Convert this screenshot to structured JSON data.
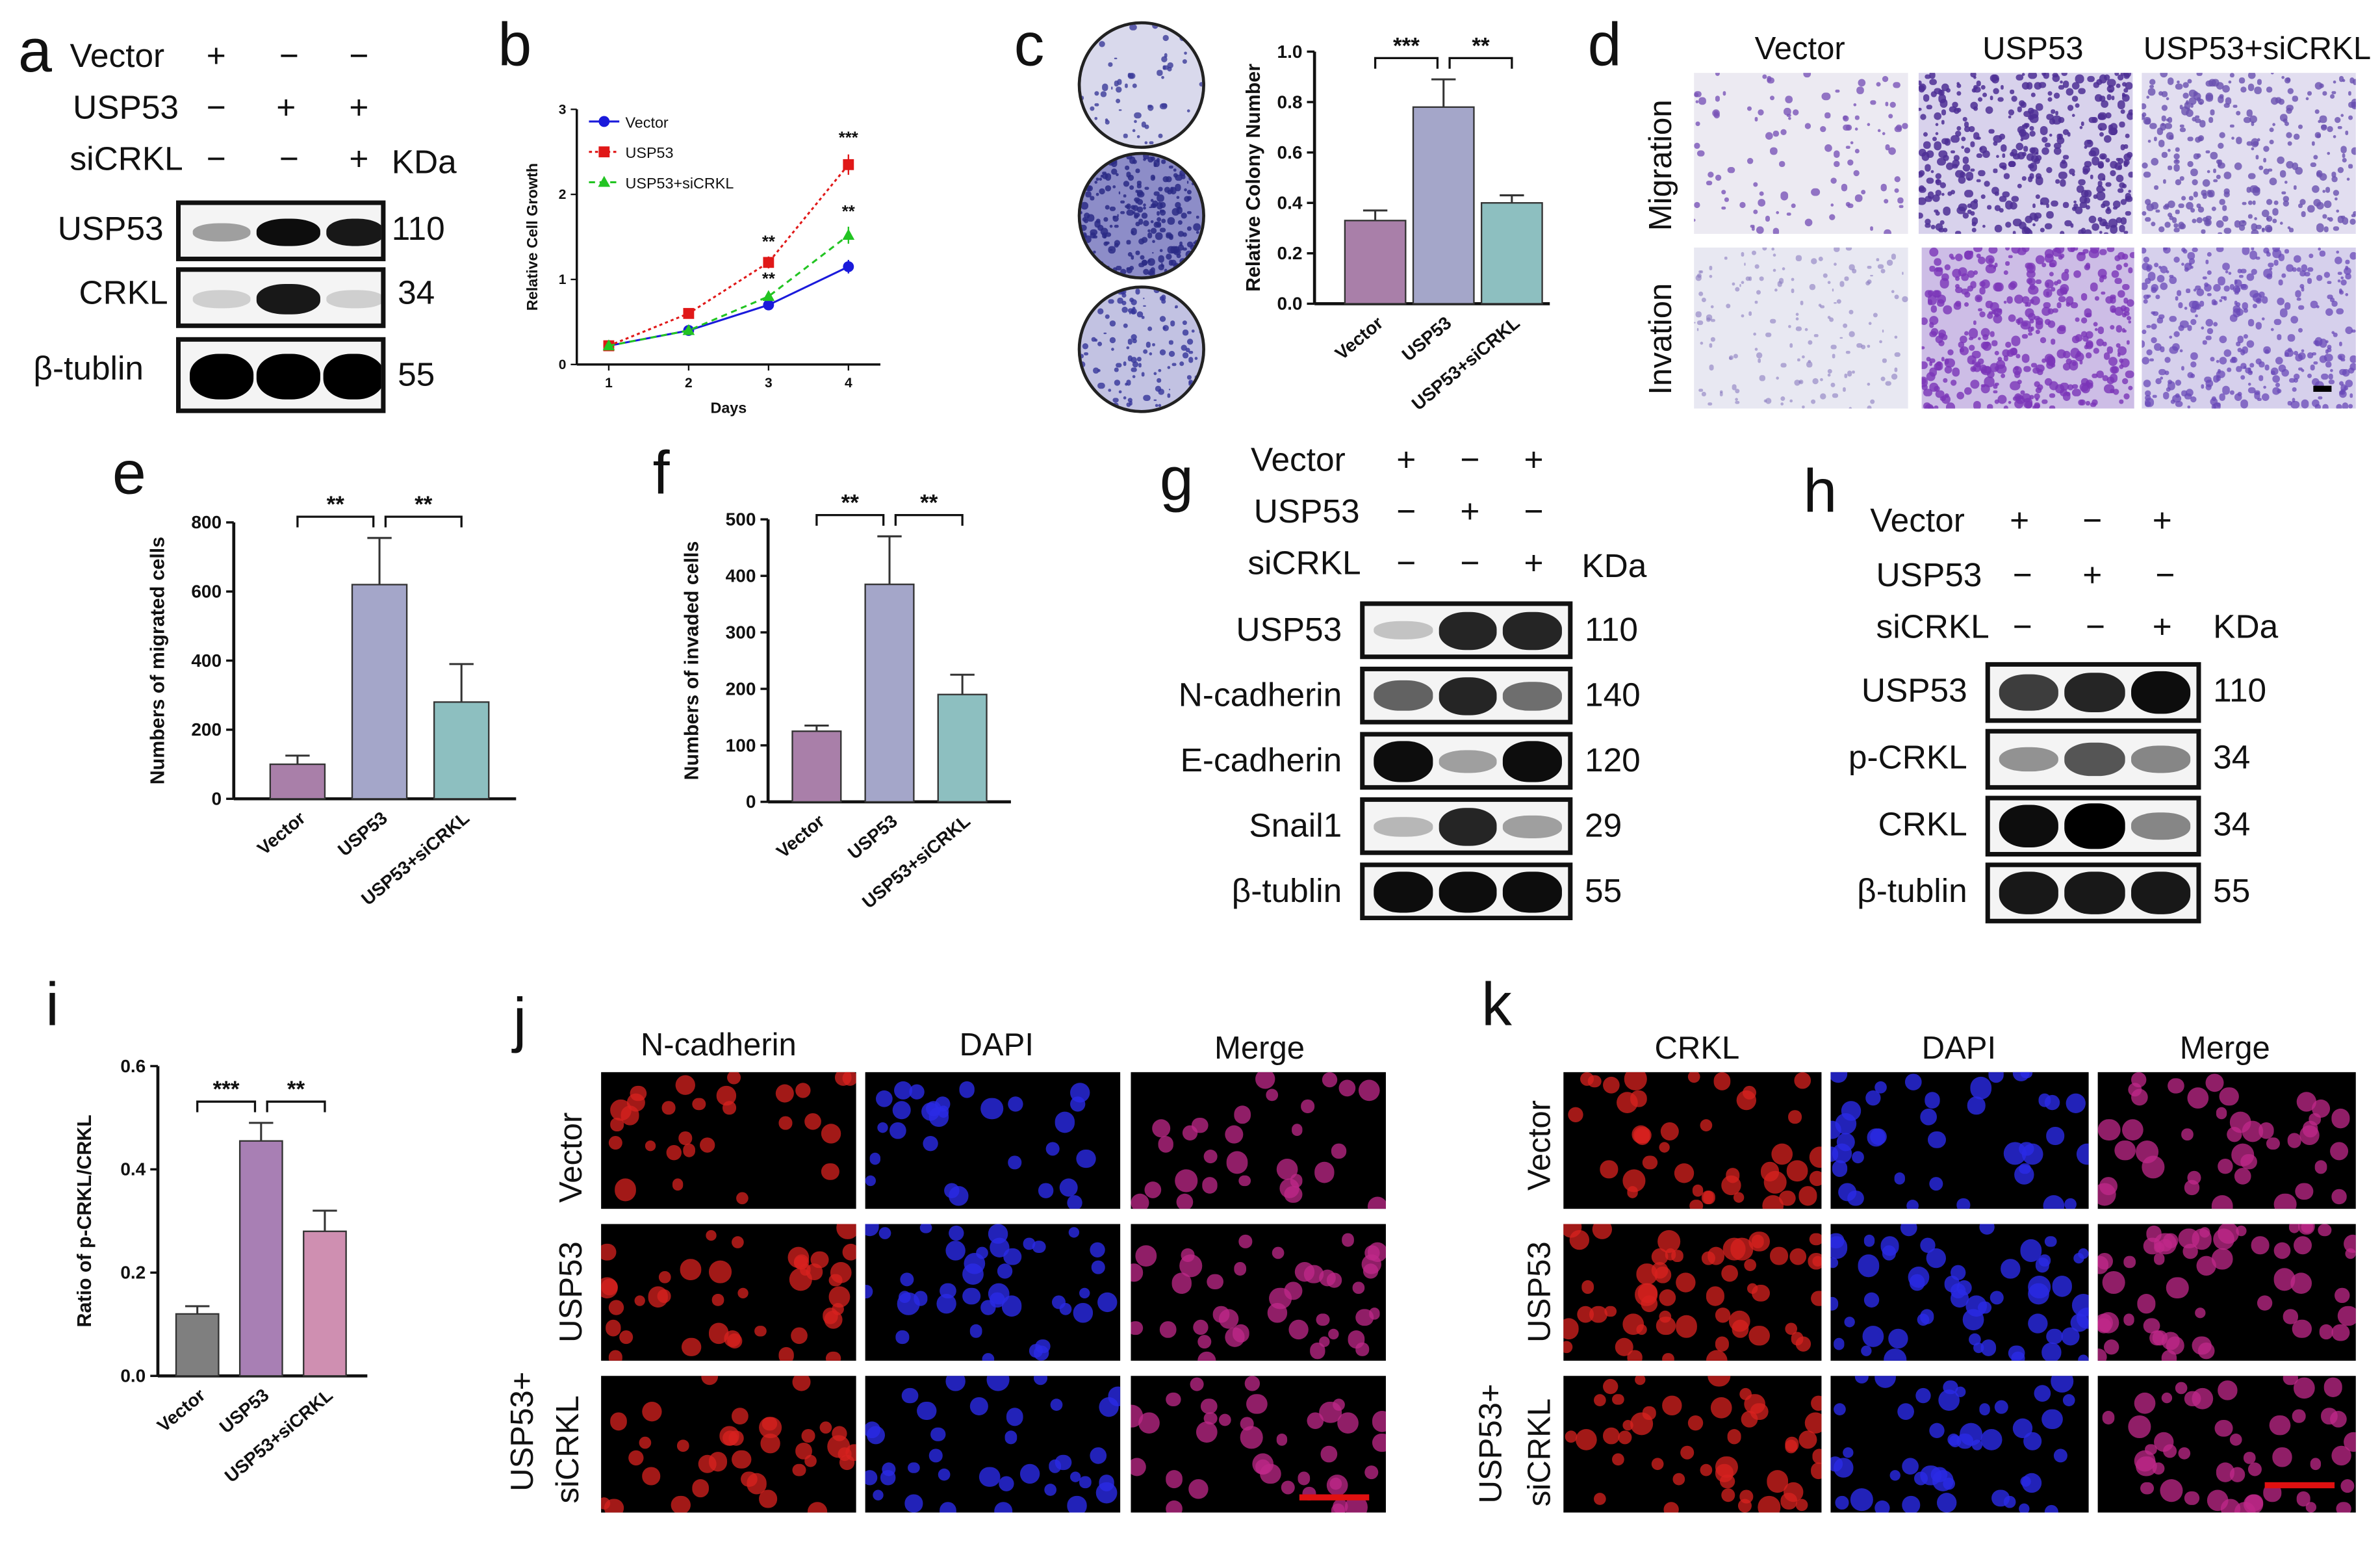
{
  "panel_letters": {
    "a": "a",
    "b": "b",
    "c": "c",
    "d": "d",
    "e": "e",
    "f": "f",
    "g": "g",
    "h": "h",
    "i": "i",
    "j": "j",
    "k": "k"
  },
  "sign": {
    "plus": "+",
    "minus": "−"
  },
  "kda": "KDa",
  "colors": {
    "vector_bar": "#a97fa9",
    "usp53_bar": "#a4a6c9",
    "si_bar": "#8dbfc0",
    "i_vector": "#7f7f7f",
    "i_usp53": "#a87fb4",
    "i_si": "#cf8fb1",
    "line_vector": "#1a1adb",
    "line_usp53": "#e01818",
    "line_si": "#22c422"
  },
  "blot_a": {
    "conditions": [
      {
        "label": "Vector",
        "signs": [
          "+",
          "−",
          "−"
        ]
      },
      {
        "label": "USP53",
        "signs": [
          "−",
          "+",
          "+"
        ]
      },
      {
        "label": "siCRKL",
        "signs": [
          "−",
          "−",
          "+"
        ]
      }
    ],
    "rows": [
      {
        "name": "USP53",
        "kda": "110",
        "intensity": [
          0.35,
          0.95,
          0.9
        ]
      },
      {
        "name": "CRKL",
        "kda": "34",
        "intensity": [
          0.15,
          0.9,
          0.15
        ]
      },
      {
        "name": "β-tublin",
        "kda": "55",
        "intensity": [
          1,
          1,
          1
        ]
      }
    ]
  },
  "blot_g": {
    "conditions": [
      {
        "label": "Vector",
        "signs": [
          "+",
          "−",
          "+"
        ]
      },
      {
        "label": "USP53",
        "signs": [
          "−",
          "+",
          "−"
        ]
      },
      {
        "label": "siCRKL",
        "signs": [
          "−",
          "−",
          "+"
        ]
      }
    ],
    "rows": [
      {
        "name": "USP53",
        "kda": "110",
        "intensity": [
          0.2,
          0.85,
          0.85
        ]
      },
      {
        "name": "N-cadherin",
        "kda": "140",
        "intensity": [
          0.6,
          0.85,
          0.55
        ]
      },
      {
        "name": "E-cadherin",
        "kda": "120",
        "intensity": [
          0.95,
          0.35,
          0.95
        ]
      },
      {
        "name": "Snail1",
        "kda": "29",
        "intensity": [
          0.25,
          0.85,
          0.35
        ]
      },
      {
        "name": "β-tublin",
        "kda": "55",
        "intensity": [
          0.95,
          0.95,
          0.95
        ]
      }
    ]
  },
  "blot_h": {
    "conditions": [
      {
        "label": "Vector",
        "signs": [
          "+",
          "−",
          "+"
        ]
      },
      {
        "label": "USP53",
        "signs": [
          "−",
          "+",
          "−"
        ]
      },
      {
        "label": "siCRKL",
        "signs": [
          "−",
          "−",
          "+"
        ]
      }
    ],
    "rows": [
      {
        "name": "USP53",
        "kda": "110",
        "intensity": [
          0.75,
          0.85,
          0.95
        ]
      },
      {
        "name": "p-CRKL",
        "kda": "34",
        "intensity": [
          0.4,
          0.65,
          0.45
        ]
      },
      {
        "name": "CRKL",
        "kda": "34",
        "intensity": [
          0.95,
          1,
          0.45
        ]
      },
      {
        "name": "β-tublin",
        "kda": "55",
        "intensity": [
          0.9,
          0.9,
          0.9
        ]
      }
    ]
  },
  "panel_d": {
    "cols": [
      "Vector",
      "USP53",
      "USP53+siCRKL"
    ],
    "rows": [
      "Migration",
      "Invation"
    ]
  },
  "panel_j": {
    "cols": [
      "N-cadherin",
      "DAPI",
      "Merge"
    ],
    "rows": [
      "Vector",
      "USP53",
      "USP53+",
      "siCRKL"
    ]
  },
  "panel_k": {
    "cols": [
      "CRKL",
      "DAPI",
      "Merge"
    ],
    "rows": [
      "Vector",
      "USP53",
      "USP53+",
      "siCRKL"
    ]
  },
  "chart_data": [
    {
      "panel": "b",
      "type": "line",
      "xlabel": "Days",
      "ylabel": "Relative Cell Growth",
      "xlim": [
        0.6,
        4.4
      ],
      "ylim": [
        0,
        3
      ],
      "xticks": [
        1,
        2,
        3,
        4
      ],
      "yticks": [
        0,
        1,
        2,
        3
      ],
      "series": [
        {
          "name": "Vector",
          "x": [
            1,
            2,
            3,
            4
          ],
          "values": [
            0.22,
            0.4,
            0.7,
            1.15
          ],
          "errors": [
            0.03,
            0.04,
            0.05,
            0.08
          ]
        },
        {
          "name": "USP53",
          "x": [
            1,
            2,
            3,
            4
          ],
          "values": [
            0.22,
            0.6,
            1.2,
            2.35
          ],
          "errors": [
            0.03,
            0.04,
            0.07,
            0.12
          ]
        },
        {
          "name": "USP53+siCRKL",
          "x": [
            1,
            2,
            3,
            4
          ],
          "values": [
            0.22,
            0.4,
            0.8,
            1.52
          ],
          "errors": [
            0.03,
            0.04,
            0.05,
            0.1
          ]
        }
      ],
      "annotations": [
        {
          "x": 3,
          "text": "**"
        },
        {
          "x": 3,
          "text": "**"
        },
        {
          "x": 4,
          "text": "***"
        },
        {
          "x": 4,
          "text": "**"
        }
      ]
    },
    {
      "panel": "c",
      "type": "bar",
      "ylabel": "Relative Colony Number",
      "categories": [
        "Vector",
        "USP53",
        "USP53+siCRKL"
      ],
      "values": [
        0.33,
        0.78,
        0.4
      ],
      "errors": [
        0.04,
        0.11,
        0.03
      ],
      "ylim": [
        0,
        1.0
      ],
      "yticks": [
        "0.0",
        "0.2",
        "0.4",
        "0.6",
        "0.8",
        "1.0"
      ],
      "significance": [
        "***",
        "**"
      ]
    },
    {
      "panel": "e",
      "type": "bar",
      "ylabel": "Numbers of migrated cells",
      "categories": [
        "Vector",
        "USP53",
        "USP53+siCRKL"
      ],
      "values": [
        100,
        620,
        280
      ],
      "errors": [
        25,
        135,
        110
      ],
      "ylim": [
        0,
        800
      ],
      "yticks": [
        "0",
        "200",
        "400",
        "600",
        "800"
      ],
      "significance": [
        "**",
        "**"
      ]
    },
    {
      "panel": "f",
      "type": "bar",
      "ylabel": "Numbers of invaded cells",
      "categories": [
        "Vector",
        "USP53",
        "USP53+siCRKL"
      ],
      "values": [
        125,
        385,
        190
      ],
      "errors": [
        10,
        85,
        35
      ],
      "ylim": [
        0,
        500
      ],
      "yticks": [
        "0",
        "100",
        "200",
        "300",
        "400",
        "500"
      ],
      "significance": [
        "**",
        "**"
      ]
    },
    {
      "panel": "i",
      "type": "bar",
      "ylabel": "Ratio of p-CRKL/CRKL",
      "categories": [
        "Vector",
        "USP53",
        "USP53+siCRKL"
      ],
      "values": [
        0.12,
        0.455,
        0.28
      ],
      "errors": [
        0.015,
        0.035,
        0.04
      ],
      "ylim": [
        0,
        0.6
      ],
      "yticks": [
        "0.0",
        "0.2",
        "0.4",
        "0.6"
      ],
      "significance": [
        "***",
        "**"
      ]
    }
  ]
}
